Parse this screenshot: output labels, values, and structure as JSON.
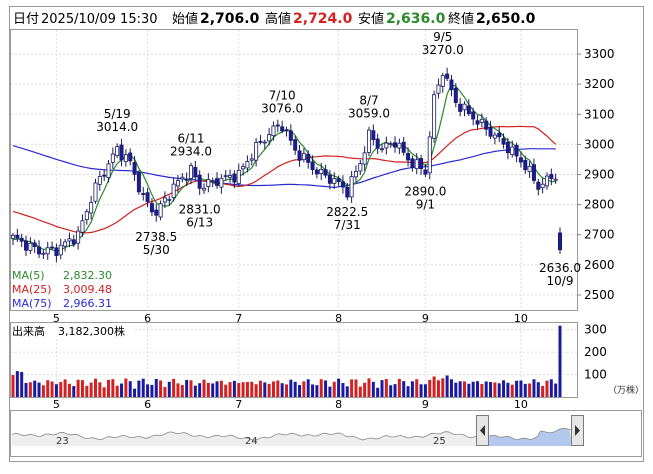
{
  "header": {
    "date_label": "日付",
    "date_value": "2025/10/09 15:30",
    "open_label": "始値",
    "open_value": "2,706.0",
    "high_label": "高値",
    "high_value": "2,724.0",
    "low_label": "安値",
    "low_value": "2,636.0",
    "close_label": "終値",
    "close_value": "2,650.0"
  },
  "legend": {
    "ma5": {
      "label": "MA(5)",
      "value": "2,832.30"
    },
    "ma25": {
      "label": "MA(25)",
      "value": "3,009.48"
    },
    "ma75": {
      "label": "MA(75)",
      "value": "2,966.31"
    }
  },
  "volume_panel": {
    "title": "出来高",
    "value": "3,182,300株",
    "unit": "（万株）"
  },
  "colors": {
    "up_candle": "#ffffff",
    "down_candle": "#1a1aa0",
    "ma5": "#2a8a2a",
    "ma25": "#d42020",
    "ma75": "#2a2ad0",
    "volume_up": "#d42020",
    "volume_down": "#1a1aa0",
    "navigator_fill": "#b4c8ee"
  },
  "chart_data": {
    "type": "candlestick",
    "price_axis": {
      "ticks": [
        2500,
        2600,
        2700,
        2800,
        2900,
        3000,
        3100,
        3200,
        3300
      ],
      "range": [
        2450,
        3380
      ]
    },
    "volume_axis": {
      "ticks": [
        100,
        200,
        300
      ],
      "range": [
        0,
        330
      ],
      "unit": "万株"
    },
    "month_labels": [
      {
        "label": "5",
        "index": 10
      },
      {
        "label": "6",
        "index": 31
      },
      {
        "label": "7",
        "index": 52
      },
      {
        "label": "8",
        "index": 75
      },
      {
        "label": "9",
        "index": 95
      },
      {
        "label": "10",
        "index": 117
      }
    ],
    "annotations": [
      {
        "text": "5/19",
        "value": "3014.0",
        "index": 24,
        "price": 3014,
        "position": "above"
      },
      {
        "text": "2738.5",
        "value": "5/30",
        "index": 33,
        "price": 2738.5,
        "position": "below"
      },
      {
        "text": "6/11",
        "value": "2934.0",
        "index": 41,
        "price": 2934,
        "position": "above"
      },
      {
        "text": "2831.0",
        "value": "6/13",
        "index": 43,
        "price": 2831,
        "position": "below"
      },
      {
        "text": "7/10",
        "value": "3076.0",
        "index": 62,
        "price": 3076,
        "position": "above"
      },
      {
        "text": "2822.5",
        "value": "7/31",
        "index": 77,
        "price": 2822.5,
        "position": "below"
      },
      {
        "text": "8/7",
        "value": "3059.0",
        "index": 82,
        "price": 3059,
        "position": "above"
      },
      {
        "text": "2890.0",
        "value": "9/1",
        "index": 95,
        "price": 2890,
        "position": "below"
      },
      {
        "text": "9/5",
        "value": "3270.0",
        "index": 99,
        "price": 3270,
        "position": "above"
      },
      {
        "text": "2636.0",
        "value": "10/9",
        "index": 126,
        "price": 2636,
        "position": "below"
      }
    ],
    "navigator": {
      "labels": [
        "23",
        "24",
        "25"
      ]
    }
  }
}
